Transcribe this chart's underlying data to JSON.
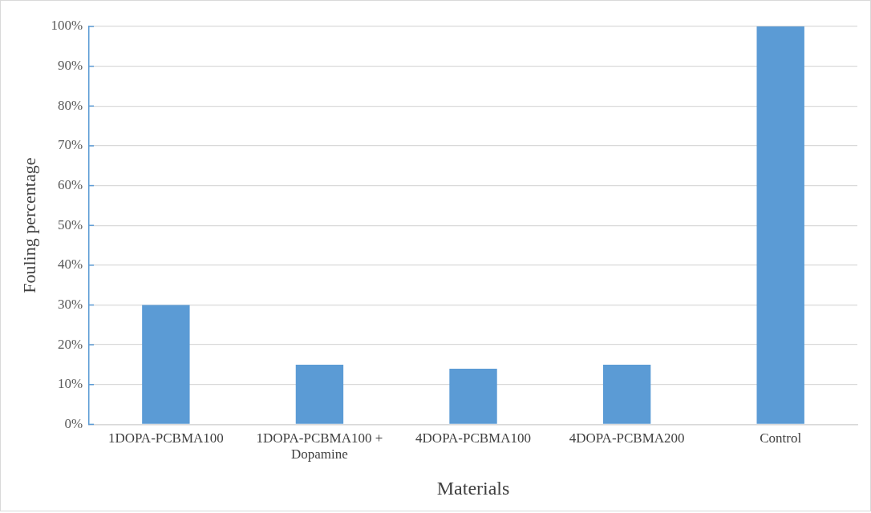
{
  "chart_data": {
    "type": "bar",
    "xlabel": "Materials",
    "ylabel": "Fouling percentage",
    "categories": [
      "1DOPA-PCBMA100",
      "1DOPA-PCBMA100 + Dopamine",
      "4DOPA-PCBMA100",
      "4DOPA-PCBMA200",
      "Control"
    ],
    "values": [
      30,
      15,
      14,
      15,
      100
    ],
    "color": "#5b9bd5",
    "ylim": [
      0,
      100
    ],
    "yticks": [
      {
        "value": 0,
        "label": "0%"
      },
      {
        "value": 10,
        "label": "10%"
      },
      {
        "value": 20,
        "label": "20%"
      },
      {
        "value": 30,
        "label": "30%"
      },
      {
        "value": 40,
        "label": "40%"
      },
      {
        "value": 50,
        "label": "50%"
      },
      {
        "value": 60,
        "label": "60%"
      },
      {
        "value": 70,
        "label": "70%"
      },
      {
        "value": 80,
        "label": "80%"
      },
      {
        "value": 90,
        "label": "90%"
      },
      {
        "value": 100,
        "label": "100%"
      }
    ],
    "grid": "y",
    "legend": false
  }
}
